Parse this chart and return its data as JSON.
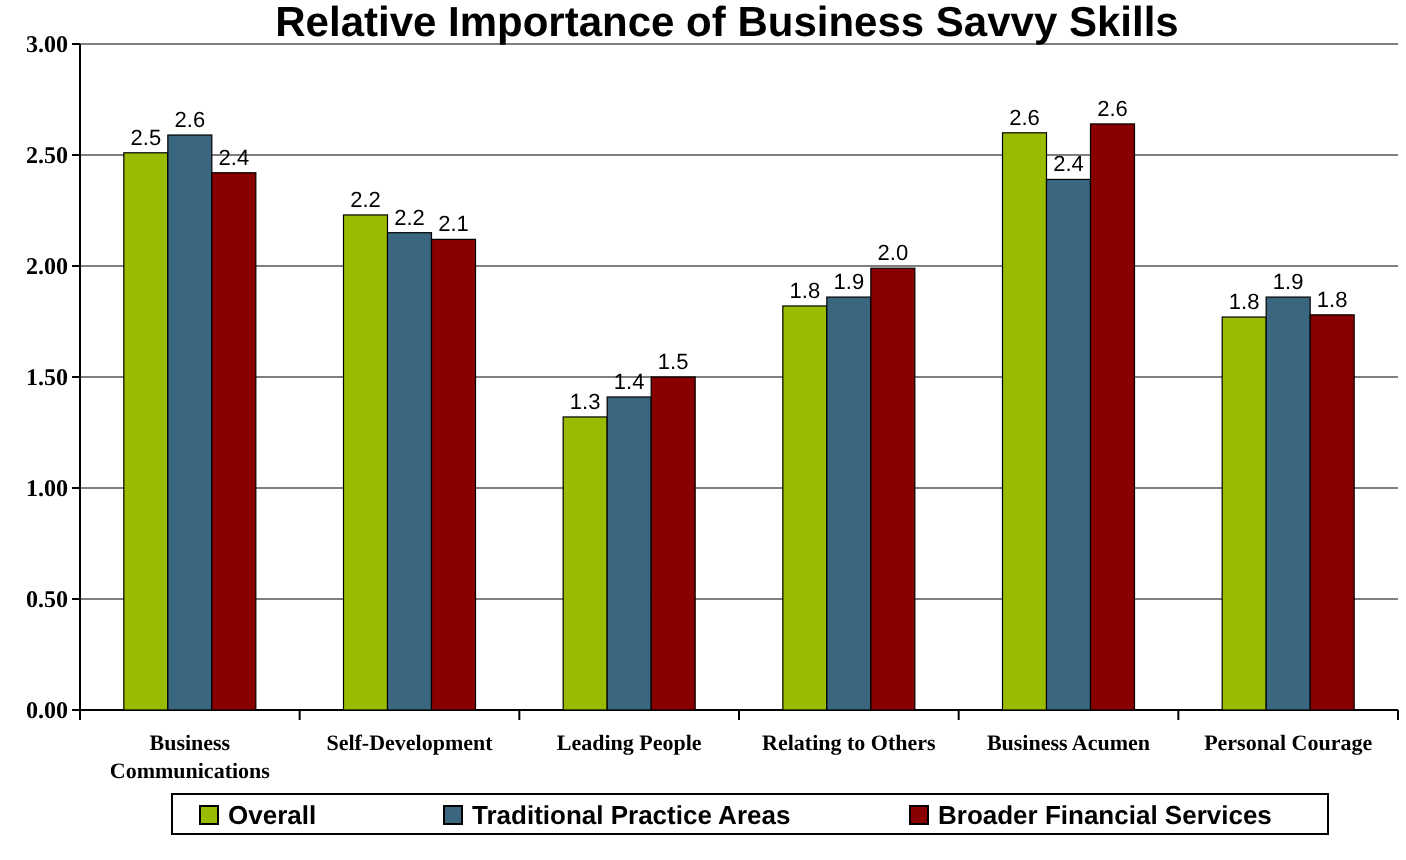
{
  "chart_data": {
    "type": "bar",
    "title": "Relative Importance of Business Savvy Skills",
    "categories": [
      "Business Communications",
      "Self-Development",
      "Leading People",
      "Relating to Others",
      "Business Acumen",
      "Personal Courage"
    ],
    "series": [
      {
        "name": "Overall",
        "color": "#99bb00",
        "values": [
          2.51,
          2.23,
          1.32,
          1.82,
          2.6,
          1.77
        ],
        "value_labels": [
          "2.5",
          "2.2",
          "1.3",
          "1.8",
          "2.6",
          "1.8"
        ]
      },
      {
        "name": "Traditional Practice Areas",
        "color": "#3a6680",
        "values": [
          2.59,
          2.15,
          1.41,
          1.86,
          2.39,
          1.86
        ],
        "value_labels": [
          "2.6",
          "2.2",
          "1.4",
          "1.9",
          "2.4",
          "1.9"
        ]
      },
      {
        "name": "Broader Financial Services",
        "color": "#880000",
        "values": [
          2.42,
          2.12,
          1.5,
          1.99,
          2.64,
          1.78
        ],
        "value_labels": [
          "2.4",
          "2.1",
          "1.5",
          "2.0",
          "2.6",
          "1.8"
        ]
      }
    ],
    "ylim": [
      0,
      3
    ],
    "yticks": [
      {
        "value": 0,
        "label": "0.00"
      },
      {
        "value": 0.5,
        "label": "0.50"
      },
      {
        "value": 1,
        "label": "1.00"
      },
      {
        "value": 1.5,
        "label": "1.50"
      },
      {
        "value": 2,
        "label": "2.00"
      },
      {
        "value": 2.5,
        "label": "2.50"
      },
      {
        "value": 3,
        "label": "3.00"
      }
    ],
    "grid": "y",
    "legend": "bottom"
  }
}
